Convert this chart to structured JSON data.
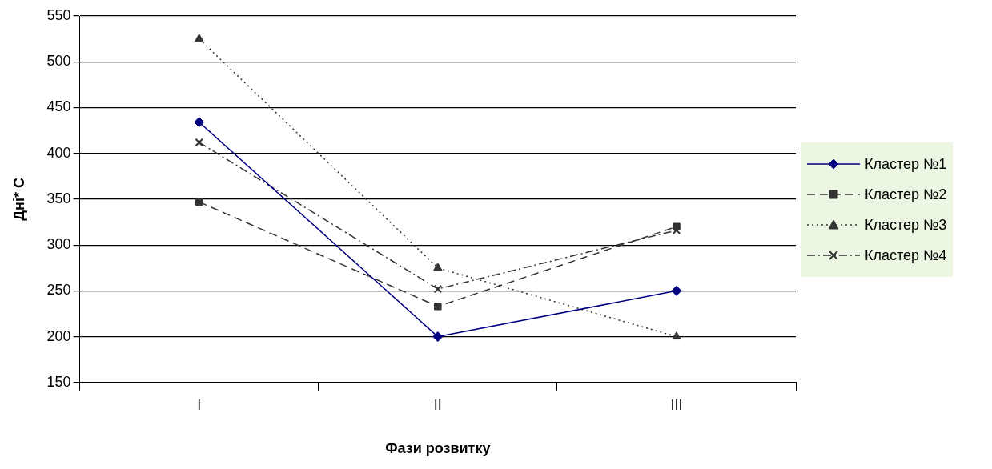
{
  "chart_data": {
    "type": "line",
    "xlabel": "Фази розвитку",
    "ylabel": "Дні* С",
    "categories": [
      "I",
      "II",
      "III"
    ],
    "series": [
      {
        "name": "Кластер №1",
        "color": "#000080",
        "values": [
          434,
          200,
          250
        ],
        "marker": "diamond",
        "line_style": "solid"
      },
      {
        "name": "Кластер №2",
        "color": "#333333",
        "values": [
          347,
          233,
          320
        ],
        "marker": "square",
        "line_style": "dashed"
      },
      {
        "name": "Кластер №3",
        "color": "#333333",
        "values": [
          525,
          275,
          200
        ],
        "marker": "triangle",
        "line_style": "dotted"
      },
      {
        "name": "Кластер №4",
        "color": "#333333",
        "values": [
          412,
          252,
          316
        ],
        "marker": "cross",
        "line_style": "dashdot"
      }
    ],
    "ylim": [
      150,
      550
    ],
    "yticks": [
      150,
      200,
      250,
      300,
      350,
      400,
      450,
      500,
      550
    ],
    "grid": "y",
    "legend": "right"
  }
}
